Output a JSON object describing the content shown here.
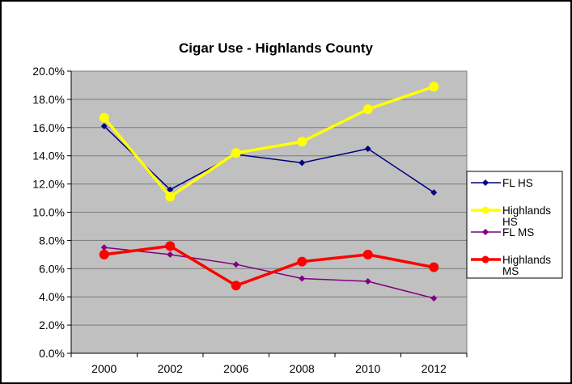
{
  "chart_data": {
    "type": "line",
    "title": "Cigar Use - Highlands County",
    "xlabel": "",
    "ylabel": "",
    "categories": [
      "2000",
      "2002",
      "2006",
      "2008",
      "2010",
      "2012"
    ],
    "ylim": [
      0,
      20
    ],
    "yticks": [
      "0.0%",
      "2.0%",
      "4.0%",
      "6.0%",
      "8.0%",
      "10.0%",
      "12.0%",
      "14.0%",
      "16.0%",
      "18.0%",
      "20.0%"
    ],
    "grid": true,
    "legend": "right",
    "plot_background": "#c0c0c0",
    "series": [
      {
        "name": "FL HS",
        "values": [
          16.1,
          11.6,
          14.1,
          13.5,
          14.5,
          11.4
        ],
        "color": "#000080",
        "marker": "diamond"
      },
      {
        "name": "Highlands HS",
        "values": [
          16.7,
          11.1,
          14.2,
          15.0,
          17.3,
          18.9
        ],
        "color": "#ffff00",
        "marker": "circle"
      },
      {
        "name": "FL MS",
        "values": [
          7.5,
          7.0,
          6.3,
          5.3,
          5.1,
          3.9
        ],
        "color": "#800080",
        "marker": "diamond"
      },
      {
        "name": "Highlands MS",
        "values": [
          7.0,
          7.6,
          4.8,
          6.5,
          7.0,
          6.1
        ],
        "color": "#ff0000",
        "marker": "circle"
      }
    ]
  }
}
